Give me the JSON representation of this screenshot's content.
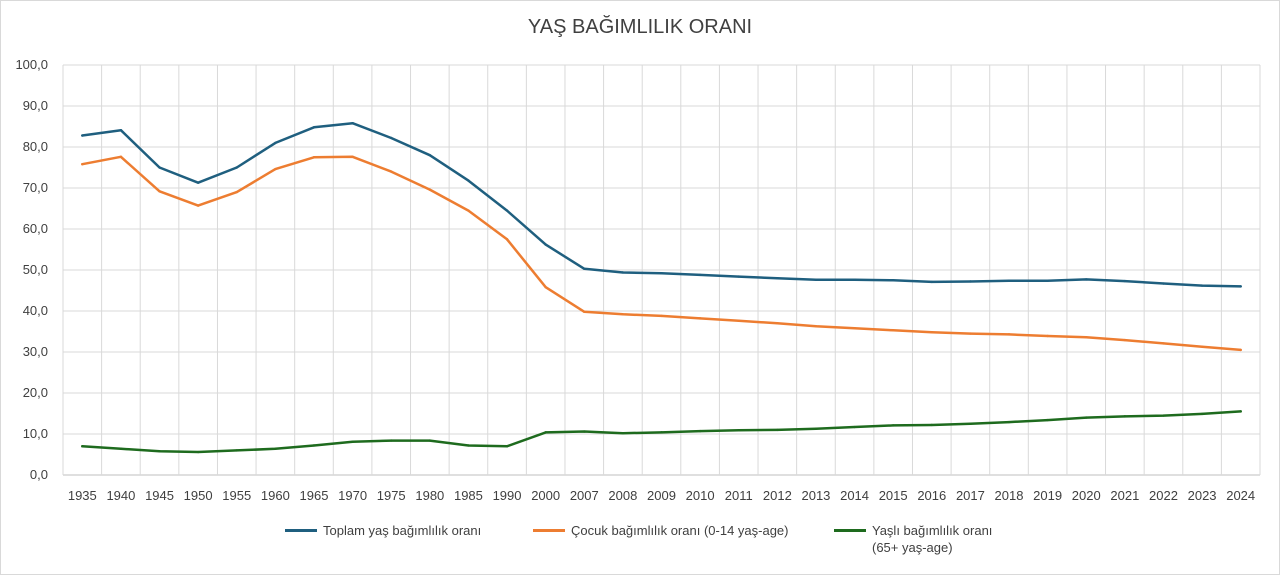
{
  "chart_data": {
    "type": "line",
    "title": "YAŞ BAĞIMLILIK ORANI",
    "categories": [
      "1935",
      "1940",
      "1945",
      "1950",
      "1955",
      "1960",
      "1965",
      "1970",
      "1975",
      "1980",
      "1985",
      "1990",
      "2000",
      "2007",
      "2008",
      "2009",
      "2010",
      "2011",
      "2012",
      "2013",
      "2014",
      "2015",
      "2016",
      "2017",
      "2018",
      "2019",
      "2020",
      "2021",
      "2022",
      "2023",
      "2024"
    ],
    "ylim": [
      0,
      100
    ],
    "yticks": [
      "0,0",
      "10,0",
      "20,0",
      "30,0",
      "40,0",
      "50,0",
      "60,0",
      "70,0",
      "80,0",
      "90,0",
      "100,0"
    ],
    "grid": true,
    "legend_position": "bottom",
    "series": [
      {
        "name": "Toplam  yaş bağımlılık oranı",
        "color": "#1f5f7f",
        "values": [
          82.8,
          84.1,
          75.0,
          71.3,
          75.0,
          81.0,
          84.8,
          85.8,
          82.2,
          78.0,
          71.8,
          64.5,
          56.2,
          50.3,
          49.4,
          49.2,
          48.8,
          48.4,
          48.0,
          47.6,
          47.6,
          47.5,
          47.1,
          47.2,
          47.4,
          47.4,
          47.7,
          47.3,
          46.7,
          46.2,
          46.0
        ]
      },
      {
        "name": "Çocuk bağımlılık oranı (0-14 yaş-age)",
        "color": "#ed7d31",
        "values": [
          75.8,
          77.6,
          69.2,
          65.7,
          69.0,
          74.6,
          77.5,
          77.6,
          74.0,
          69.6,
          64.5,
          57.5,
          45.8,
          39.8,
          39.2,
          38.8,
          38.2,
          37.6,
          37.0,
          36.3,
          35.8,
          35.3,
          34.8,
          34.5,
          34.3,
          33.9,
          33.6,
          32.9,
          32.1,
          31.3,
          30.5
        ]
      },
      {
        "name": "Yaşlı bağımlılık oranı",
        "name_line2": "(65+ yaş-age)",
        "color": "#1e6b1e",
        "values": [
          7.0,
          6.4,
          5.8,
          5.6,
          6.0,
          6.4,
          7.2,
          8.1,
          8.4,
          8.4,
          7.2,
          7.0,
          10.4,
          10.6,
          10.2,
          10.4,
          10.7,
          10.9,
          11.0,
          11.3,
          11.7,
          12.1,
          12.2,
          12.5,
          12.9,
          13.4,
          14.0,
          14.3,
          14.5,
          14.9,
          15.5
        ]
      }
    ]
  }
}
